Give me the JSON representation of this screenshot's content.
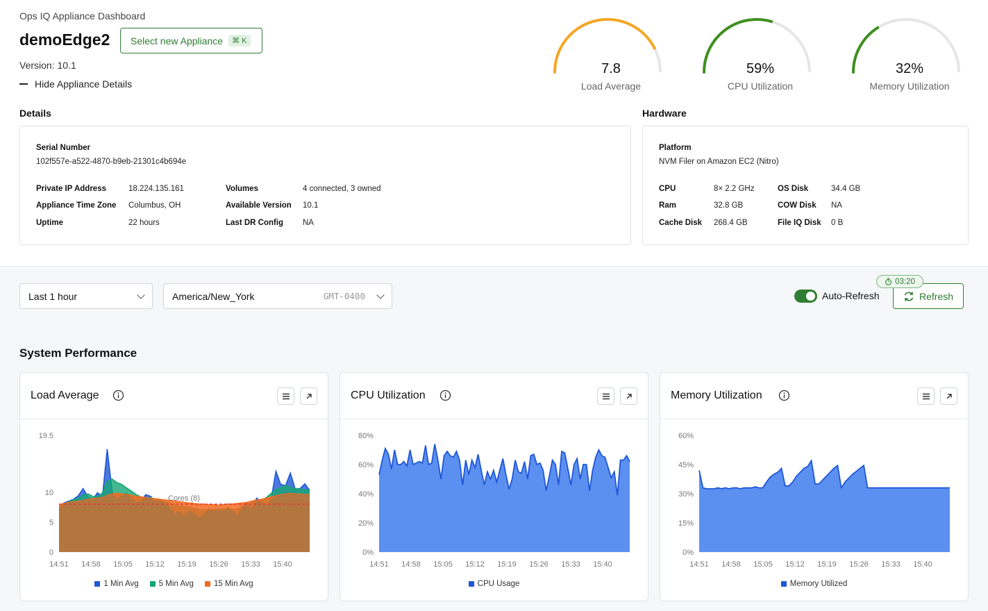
{
  "header": {
    "app_title": "Ops IQ Appliance Dashboard",
    "appliance_name": "demoEdge2",
    "select_button": "Select new Appliance",
    "shortcut": "⌘ K",
    "version": "Version: 10.1",
    "hide_details": "Hide Appliance Details"
  },
  "gauges": [
    {
      "value_text": "7.8",
      "label": "Load Average",
      "fraction": 0.85,
      "color": "#f5a623"
    },
    {
      "value_text": "59%",
      "label": "CPU Utilization",
      "fraction": 0.59,
      "color": "#3f8f20"
    },
    {
      "value_text": "32%",
      "label": "Memory Utilization",
      "fraction": 0.32,
      "color": "#3f8f20"
    }
  ],
  "details": {
    "title": "Details",
    "serial_label": "Serial Number",
    "serial_value": "102f557e-a522-4870-b9eb-21301c4b694e",
    "rows": [
      {
        "label": "Private IP Address",
        "value": "18.224.135.161"
      },
      {
        "label": "Appliance Time Zone",
        "value": "Columbus, OH"
      },
      {
        "label": "Uptime",
        "value": "22 hours"
      },
      {
        "label": "Volumes",
        "value": "4 connected, 3 owned"
      },
      {
        "label": "Available Version",
        "value": "10.1"
      },
      {
        "label": "Last DR Config",
        "value": "NA"
      }
    ]
  },
  "hardware": {
    "title": "Hardware",
    "platform_label": "Platform",
    "platform_value": "NVM Filer on Amazon EC2 (Nitro)",
    "rows": [
      {
        "label": "CPU",
        "value": "8× 2.2 GHz"
      },
      {
        "label": "Ram",
        "value": "32.8 GB"
      },
      {
        "label": "Cache Disk",
        "value": "268.4 GB"
      },
      {
        "label": "OS Disk",
        "value": "34.4 GB"
      },
      {
        "label": "COW Disk",
        "value": "NA"
      },
      {
        "label": "File IQ Disk",
        "value": "0 B"
      }
    ]
  },
  "controls": {
    "time_range": "Last 1 hour",
    "timezone": "America/New_York",
    "tz_offset": "GMT-0400",
    "auto_refresh_label": "Auto-Refresh",
    "auto_refresh_on": true,
    "refresh_button": "Refresh",
    "countdown": "03:20"
  },
  "performance": {
    "title": "System Performance",
    "load_title": "Load Average",
    "cpu_title": "CPU Utilization",
    "mem_title": "Memory Utilization",
    "cores_label": "Cores (8)",
    "legend_load": [
      "1 Min Avg",
      "5 Min Avg",
      "15 Min Avg"
    ],
    "legend_cpu": "CPU Usage",
    "legend_mem": "Memory Utilized"
  },
  "chart_data": [
    {
      "type": "area",
      "title": "Load Average",
      "x_ticks": [
        "14:51",
        "14:58",
        "15:05",
        "15:12",
        "15:19",
        "15:26",
        "15:33",
        "15:40"
      ],
      "y_ticks": [
        "0",
        "5",
        "10",
        "19.5"
      ],
      "ylim": [
        0,
        19.5
      ],
      "threshold": 8,
      "colors": [
        "#1f57d6",
        "#17a673",
        "#f26b21"
      ],
      "series": [
        {
          "name": "1 Min Avg",
          "values": [
            7,
            8.2,
            8.5,
            8.8,
            9.4,
            10.6,
            9.2,
            8.8,
            9.9,
            9.2,
            17.2,
            10.2,
            8.8,
            9.5,
            9.8,
            9.1,
            8.2,
            8.5,
            9.6,
            9.3,
            8.5,
            8.6,
            8.1,
            7.5,
            6.4,
            6.8,
            6.1,
            7,
            6.5,
            5.8,
            6.3,
            7.2,
            6.9,
            7.2,
            6.8,
            7.5,
            6.9,
            6.1,
            7.6,
            8.2,
            7.1,
            9,
            8.4,
            7.6,
            8.8,
            13.5,
            11.3,
            11.1,
            13.2,
            10.5,
            10.6,
            11.4,
            10.3
          ]
        },
        {
          "name": "5 Min Avg",
          "values": [
            7.5,
            8.1,
            8.4,
            8.7,
            9,
            9.5,
            9.7,
            9.3,
            9.2,
            9.9,
            11.8,
            12.2,
            11.6,
            11.3,
            10.7,
            10.2,
            9.6,
            9.2,
            9,
            9.1,
            8.8,
            8.6,
            8.4,
            8.1,
            7.8,
            7.7,
            7.6,
            7.5,
            7.3,
            7.1,
            7,
            7,
            7.1,
            7.1,
            7.2,
            7.3,
            7.1,
            7.2,
            7.4,
            7.8,
            8.2,
            8.6,
            8.6,
            9.1,
            9.8,
            10.4,
            10.8,
            11.1,
            10.8,
            10.6,
            10.5,
            10.4,
            10.3
          ]
        },
        {
          "name": "15 Min Avg",
          "values": [
            7.9,
            8.1,
            8.3,
            8.4,
            8.5,
            8.6,
            8.8,
            8.9,
            9,
            9.1,
            9.5,
            9.7,
            9.8,
            9.7,
            9.6,
            9.5,
            9.3,
            9.2,
            9.1,
            9,
            8.9,
            8.8,
            8.7,
            8.6,
            8.5,
            8.4,
            8.3,
            8.2,
            8.1,
            8,
            8,
            7.9,
            7.9,
            7.8,
            7.9,
            8,
            8,
            8.1,
            8.2,
            8.3,
            8.5,
            8.7,
            8.8,
            9,
            9.2,
            9.4,
            9.6,
            9.7,
            9.8,
            9.7,
            9.7,
            9.6,
            9.6
          ]
        }
      ]
    },
    {
      "type": "area",
      "title": "CPU Utilization",
      "x_ticks": [
        "14:51",
        "14:58",
        "15:05",
        "15:12",
        "15:19",
        "15:26",
        "15:33",
        "15:40"
      ],
      "y_ticks": [
        "0%",
        "20%",
        "40%",
        "60%",
        "80%"
      ],
      "ylim": [
        0,
        80
      ],
      "color": "#5b8ff0",
      "line_color": "#1f57d6",
      "series": [
        {
          "name": "CPU Usage",
          "values": [
            53,
            63,
            71,
            67,
            57,
            70,
            60,
            60,
            62,
            59,
            70,
            60,
            61,
            62,
            61,
            73,
            60,
            61,
            74,
            63,
            50,
            66,
            69,
            66,
            65,
            69,
            63,
            46,
            63,
            53,
            63,
            58,
            67,
            56,
            46,
            55,
            50,
            56,
            48,
            56,
            64,
            53,
            43,
            50,
            63,
            55,
            54,
            62,
            50,
            66,
            67,
            60,
            61,
            56,
            42,
            52,
            63,
            60,
            46,
            69,
            68,
            57,
            46,
            60,
            64,
            50,
            60,
            60,
            42,
            56,
            65,
            70,
            66,
            65,
            58,
            51,
            55,
            39,
            63,
            63,
            66,
            62
          ]
        }
      ]
    },
    {
      "type": "area",
      "title": "Memory Utilization",
      "x_ticks": [
        "14:51",
        "14:58",
        "15:05",
        "15:12",
        "15:19",
        "15:26",
        "15:33",
        "15:40"
      ],
      "y_ticks": [
        "0%",
        "15%",
        "30%",
        "45%",
        "60%"
      ],
      "ylim": [
        0,
        60
      ],
      "color": "#5b8ff0",
      "line_color": "#1f57d6",
      "series": [
        {
          "name": "Memory Utilized",
          "values": [
            42,
            33,
            32.5,
            32.5,
            32.5,
            33,
            32.5,
            33,
            32.5,
            33,
            33,
            32.5,
            33,
            33,
            33,
            33.5,
            33,
            33,
            36,
            38.5,
            40,
            41,
            43,
            34,
            34,
            36,
            39,
            41,
            43,
            44,
            47,
            35,
            35,
            37,
            39,
            41,
            43,
            44.5,
            33,
            36,
            38,
            40,
            41.5,
            43,
            44.5,
            33,
            33,
            33,
            33,
            33,
            33,
            33,
            33,
            33,
            33,
            33,
            33,
            33,
            33,
            33,
            33,
            33,
            33,
            33,
            33,
            33,
            33,
            33
          ]
        }
      ]
    }
  ]
}
